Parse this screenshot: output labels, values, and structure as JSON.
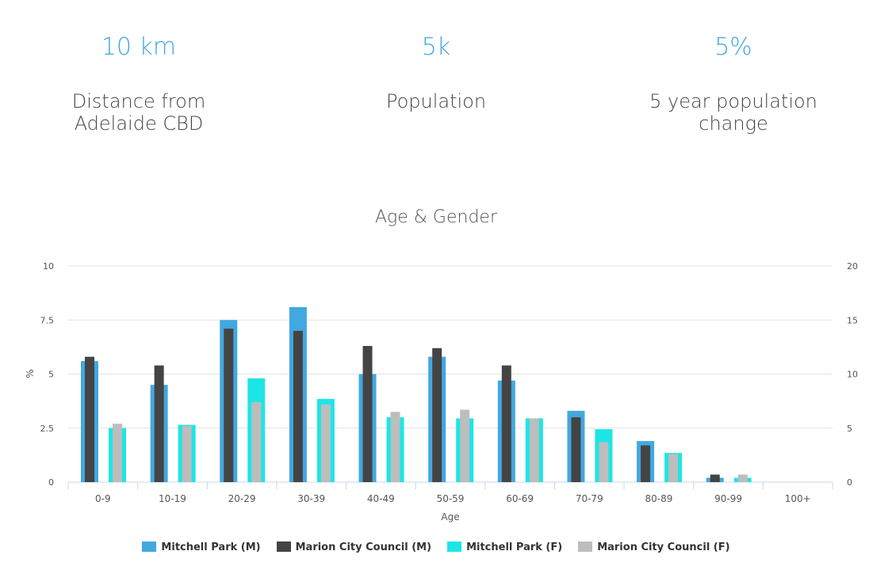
{
  "stats": [
    {
      "value": "10 km",
      "label": "Distance from Adelaide CBD"
    },
    {
      "value": "5k",
      "label": "Population"
    },
    {
      "value": "5%",
      "label": "5 year population change"
    }
  ],
  "chart_data": {
    "type": "bar",
    "title": "Age & Gender",
    "xlabel": "Age",
    "ylabel": "%",
    "ylim": [
      0,
      10
    ],
    "y2lim": [
      0,
      20
    ],
    "yticks": [
      "0",
      "2.5",
      "5",
      "7.5",
      "10"
    ],
    "y2ticks": [
      "0",
      "5",
      "10",
      "15",
      "20"
    ],
    "grid": true,
    "legend_position": "bottom",
    "categories": [
      "0-9",
      "10-19",
      "20-29",
      "30-39",
      "40-49",
      "50-59",
      "60-69",
      "70-79",
      "80-89",
      "90-99",
      "100+"
    ],
    "series": [
      {
        "name": "Mitchell Park (M)",
        "color": "#41a8e0",
        "group": "male",
        "layer": "back",
        "values": [
          5.6,
          4.5,
          7.5,
          8.1,
          5.0,
          5.8,
          4.7,
          3.3,
          1.9,
          0.2,
          0
        ]
      },
      {
        "name": "Marion City Council (M)",
        "color": "#444444",
        "group": "male",
        "layer": "front",
        "values": [
          5.8,
          5.4,
          7.1,
          7.0,
          6.3,
          6.2,
          5.4,
          3.0,
          1.7,
          0.35,
          0
        ]
      },
      {
        "name": "Mitchell Park (F)",
        "color": "#1ee5e5",
        "group": "female",
        "layer": "back",
        "values": [
          2.5,
          2.65,
          4.8,
          3.85,
          3.0,
          2.95,
          2.95,
          2.45,
          1.35,
          0.2,
          0
        ]
      },
      {
        "name": "Marion City Council (F)",
        "color": "#bdbdbd",
        "group": "female",
        "layer": "front",
        "values": [
          2.7,
          2.6,
          3.7,
          3.6,
          3.25,
          3.35,
          2.95,
          1.85,
          1.3,
          0.35,
          0
        ]
      }
    ]
  }
}
